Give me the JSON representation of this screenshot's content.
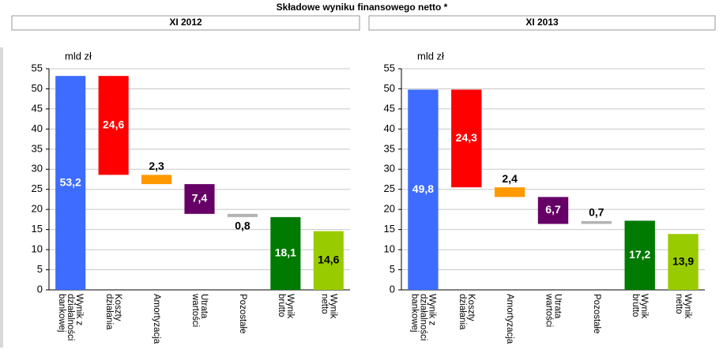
{
  "title": "Składowe wyniku finansowego netto *",
  "chart_data": [
    {
      "type": "waterfall",
      "title": "XI 2012",
      "ylabel": "mld zł",
      "categories": [
        [
          "Wynik z",
          "działalności",
          "bankowej"
        ],
        [
          "Koszty",
          "działania"
        ],
        [
          "Amortyzacja"
        ],
        [
          "Utrata",
          "wartości"
        ],
        [
          "Pozostałe"
        ],
        [
          "Wynik",
          "brutto"
        ],
        [
          "Wynik",
          "netto"
        ]
      ],
      "values": [
        53.2,
        24.6,
        2.3,
        7.4,
        0.8,
        18.1,
        14.6
      ],
      "value_labels": [
        "53,2",
        "24,6",
        "2,3",
        "7,4",
        "0,8",
        "18,1",
        "14,6"
      ],
      "measure": [
        "absolute",
        "decrease",
        "decrease",
        "decrease",
        "decrease",
        "absolute",
        "absolute"
      ],
      "colors": [
        "#3d6cff",
        "#ff0000",
        "#ff9900",
        "#660066",
        "#b3b3b3",
        "#007a00",
        "#99cc00"
      ],
      "label_colors": [
        "#ffffff",
        "#ffffff",
        "#000000",
        "#ffffff",
        "#000000",
        "#ffffff",
        "#000000"
      ],
      "label_positions": [
        "inside",
        "inside",
        "above",
        "inside",
        "below",
        "inside",
        "inside"
      ],
      "ylim": [
        0,
        55
      ],
      "yticks": [
        0,
        5,
        10,
        15,
        20,
        25,
        30,
        35,
        40,
        45,
        50,
        55
      ],
      "grid": true
    },
    {
      "type": "waterfall",
      "title": "XI 2013",
      "ylabel": "mld zł",
      "categories": [
        [
          "Wynik z",
          "działalności",
          "bankowej"
        ],
        [
          "Koszty",
          "działania"
        ],
        [
          "Amortyzacja"
        ],
        [
          "Utrata",
          "wartości"
        ],
        [
          "Pozostałe"
        ],
        [
          "Wynik",
          "brutto"
        ],
        [
          "Wynik",
          "netto"
        ]
      ],
      "values": [
        49.8,
        24.3,
        2.4,
        6.7,
        0.7,
        17.2,
        13.9
      ],
      "value_labels": [
        "49,8",
        "24,3",
        "2,4",
        "6,7",
        "0,7",
        "17,2",
        "13,9"
      ],
      "measure": [
        "absolute",
        "decrease",
        "decrease",
        "decrease",
        "increase",
        "absolute",
        "absolute"
      ],
      "colors": [
        "#3d6cff",
        "#ff0000",
        "#ff9900",
        "#660066",
        "#b3b3b3",
        "#007a00",
        "#99cc00"
      ],
      "label_colors": [
        "#ffffff",
        "#ffffff",
        "#000000",
        "#ffffff",
        "#000000",
        "#ffffff",
        "#000000"
      ],
      "label_positions": [
        "inside",
        "inside",
        "above",
        "inside",
        "above",
        "inside",
        "inside"
      ],
      "ylim": [
        0,
        55
      ],
      "yticks": [
        0,
        5,
        10,
        15,
        20,
        25,
        30,
        35,
        40,
        45,
        50,
        55
      ],
      "grid": true
    }
  ]
}
